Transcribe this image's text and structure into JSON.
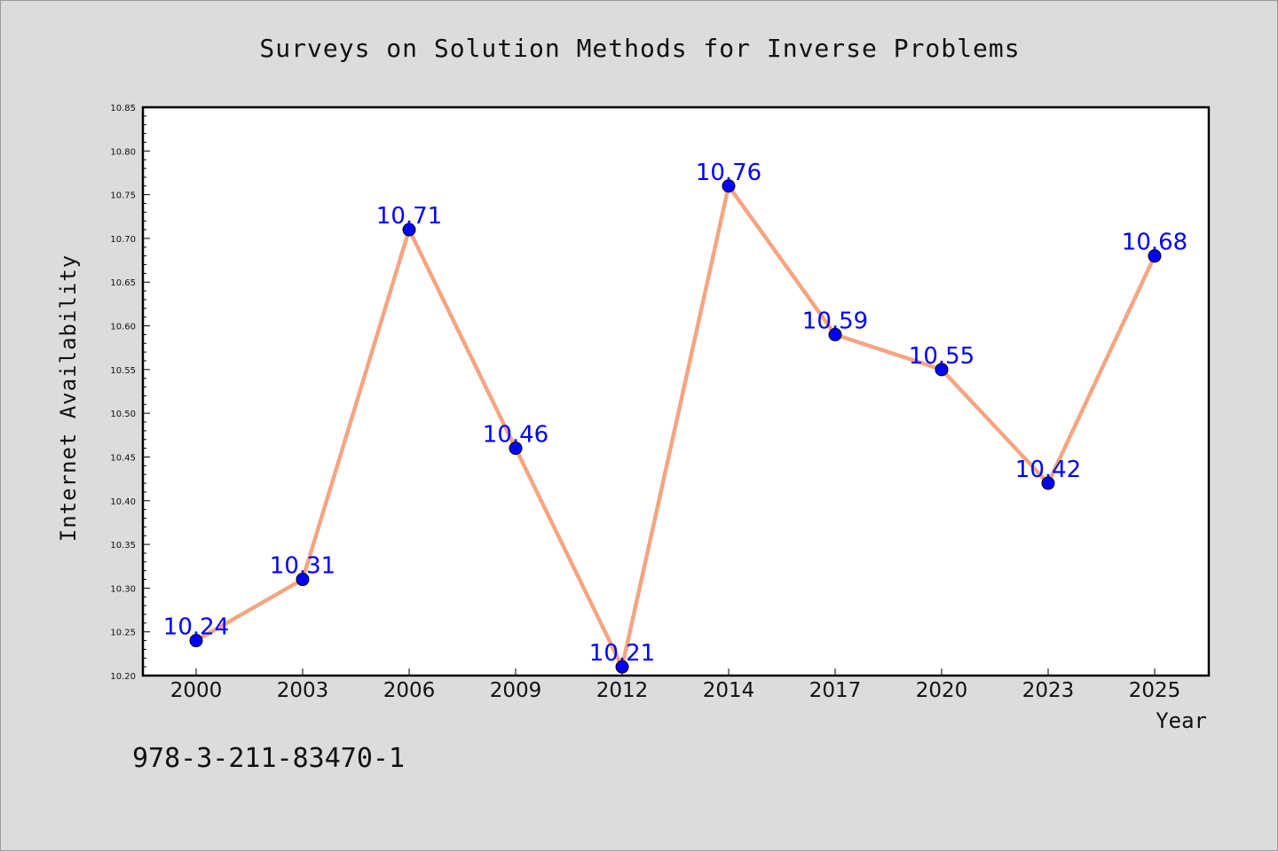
{
  "chart_data": {
    "type": "line",
    "title": "Surveys on Solution Methods for Inverse Problems",
    "xlabel": "Year",
    "ylabel": "Internet Availability",
    "categories": [
      "2000",
      "2003",
      "2006",
      "2009",
      "2012",
      "2014",
      "2017",
      "2020",
      "2023",
      "2025"
    ],
    "series": [
      {
        "values": [
          10.24,
          10.31,
          10.71,
          10.46,
          10.21,
          10.76,
          10.59,
          10.55,
          10.42,
          10.68
        ]
      }
    ],
    "data_labels": [
      "10.24",
      "10.31",
      "10.71",
      "10.46",
      "10.21",
      "10.76",
      "10.59",
      "10.55",
      "10.42",
      "10.68"
    ],
    "ylim": [
      10.2,
      10.85
    ],
    "yticks": [
      "10.20",
      "10.25",
      "10.30",
      "10.35",
      "10.40",
      "10.45",
      "10.50",
      "10.55",
      "10.60",
      "10.65",
      "10.70",
      "10.75",
      "10.80",
      "10.85"
    ],
    "grid": false,
    "legend": "none",
    "colors": {
      "background": "#dcdcdc",
      "plot_area": "#ffffff",
      "line": "#f4a582",
      "marker": "#0000ff",
      "data_label": "#0000ff"
    }
  },
  "footer": {
    "isbn": "978-3-211-83470-1"
  }
}
